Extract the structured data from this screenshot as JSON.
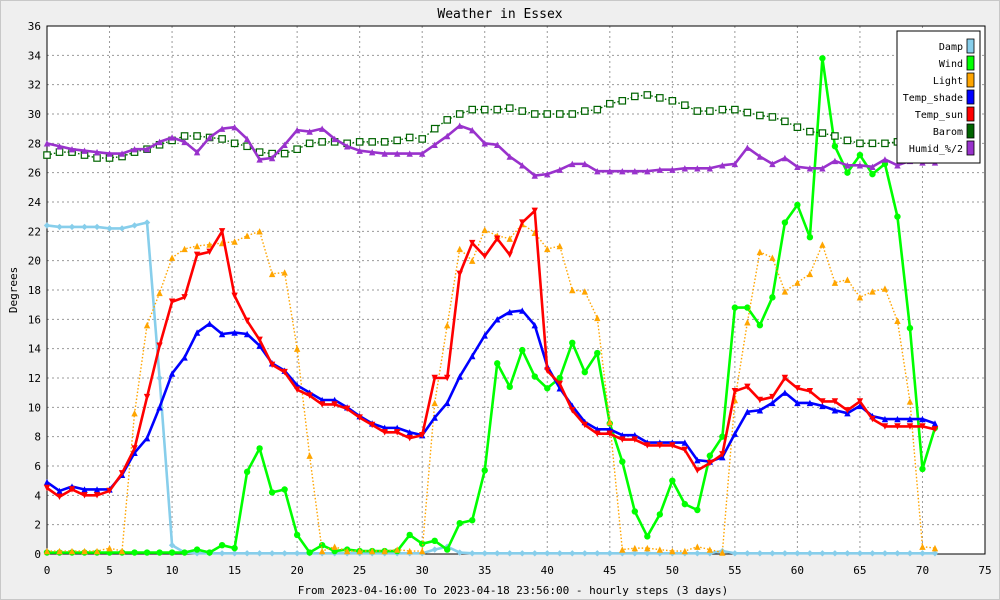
{
  "chart_data": {
    "type": "line",
    "title": "Weather in Essex",
    "xlabel": "From 2023-04-16:00 To 2023-04-18 23:56:00 - hourly steps (3 days)",
    "ylabel": "Degrees",
    "xlim": [
      0,
      75
    ],
    "ylim": [
      0,
      36
    ],
    "x_ticks": [
      "0",
      "5",
      "10",
      "15",
      "20",
      "25",
      "30",
      "35",
      "40",
      "45",
      "50",
      "55",
      "60",
      "65",
      "70",
      "75"
    ],
    "y_ticks": [
      "0",
      "2",
      "4",
      "6",
      "8",
      "10",
      "12",
      "14",
      "16",
      "18",
      "20",
      "22",
      "24",
      "26",
      "28",
      "30",
      "32",
      "34",
      "36"
    ],
    "grid": true,
    "legend_position": "top-right",
    "x": [
      0,
      1,
      2,
      3,
      4,
      5,
      6,
      7,
      8,
      9,
      10,
      11,
      12,
      13,
      14,
      15,
      16,
      17,
      18,
      19,
      20,
      21,
      22,
      23,
      24,
      25,
      26,
      27,
      28,
      29,
      30,
      31,
      32,
      33,
      34,
      35,
      36,
      37,
      38,
      39,
      40,
      41,
      42,
      43,
      44,
      45,
      46,
      47,
      48,
      49,
      50,
      51,
      52,
      53,
      54,
      55,
      56,
      57,
      58,
      59,
      60,
      61,
      62,
      63,
      64,
      65,
      66,
      67,
      68,
      69,
      70,
      71
    ],
    "series": [
      {
        "name": "Damp",
        "color": "#87ceeb",
        "style": "solid",
        "marker": "diamond",
        "values": [
          22.4,
          22.3,
          22.3,
          22.3,
          22.3,
          22.2,
          22.2,
          22.4,
          22.6,
          12.0,
          0.6,
          0.1,
          0.05,
          0.05,
          0.05,
          0.05,
          0.05,
          0.05,
          0.05,
          0.05,
          0.05,
          0.05,
          0.05,
          0.05,
          0.05,
          0.05,
          0.05,
          0.05,
          0.05,
          0.05,
          0.05,
          0.3,
          0.5,
          0.1,
          0.05,
          0.05,
          0.05,
          0.05,
          0.05,
          0.05,
          0.05,
          0.05,
          0.05,
          0.05,
          0.05,
          0.05,
          0.05,
          0.05,
          0.05,
          0.05,
          0.05,
          0.05,
          0.05,
          0.05,
          0.2,
          0.05,
          0.05,
          0.05,
          0.05,
          0.05,
          0.05,
          0.05,
          0.05,
          0.05,
          0.05,
          0.05,
          0.05,
          0.05,
          0.05,
          0.05,
          0.05,
          0.05
        ]
      },
      {
        "name": "Wind",
        "color": "#00ff00",
        "style": "solid",
        "marker": "circle",
        "values": [
          0.1,
          0.1,
          0.1,
          0.1,
          0.1,
          0.1,
          0.1,
          0.1,
          0.1,
          0.1,
          0.1,
          0.1,
          0.3,
          0.1,
          0.6,
          0.4,
          5.6,
          7.2,
          4.2,
          4.4,
          1.3,
          0.1,
          0.6,
          0.2,
          0.3,
          0.2,
          0.2,
          0.2,
          0.2,
          1.3,
          0.7,
          0.9,
          0.3,
          2.1,
          2.3,
          5.7,
          13.0,
          11.4,
          13.9,
          12.1,
          11.3,
          12.0,
          14.4,
          12.4,
          13.7,
          8.9,
          6.3,
          2.9,
          1.2,
          2.7,
          5.0,
          3.4,
          3.0,
          6.7,
          8.0,
          16.8,
          16.8,
          15.6,
          17.5,
          22.6,
          23.8,
          21.6,
          33.8,
          27.8,
          26.0,
          27.2,
          25.9,
          26.6,
          23.0,
          15.4,
          5.8,
          8.6
        ]
      },
      {
        "name": "Light",
        "color": "#ffa500",
        "style": "dotted",
        "marker": "triangle",
        "values": [
          0.2,
          0.2,
          0.2,
          0.2,
          0.2,
          0.4,
          0.2,
          9.6,
          15.6,
          17.8,
          20.2,
          20.8,
          21.0,
          21.1,
          21.2,
          21.3,
          21.7,
          22.0,
          19.1,
          19.2,
          14.0,
          6.7,
          0.2,
          0.5,
          0.2,
          0.2,
          0.2,
          0.2,
          0.3,
          0.2,
          0.2,
          10.3,
          15.6,
          20.8,
          20.0,
          22.1,
          21.7,
          21.5,
          22.5,
          21.9,
          20.8,
          21.0,
          18.0,
          17.9,
          16.1,
          9.0,
          0.3,
          0.4,
          0.4,
          0.3,
          0.2,
          0.2,
          0.5,
          0.3,
          0.1,
          10.5,
          15.8,
          20.6,
          20.2,
          17.9,
          18.5,
          19.1,
          21.1,
          18.5,
          18.7,
          17.5,
          17.9,
          18.1,
          15.9,
          10.4,
          0.5,
          0.4
        ]
      },
      {
        "name": "Temp_shade",
        "color": "#0000ff",
        "style": "solid",
        "marker": "triangle",
        "values": [
          4.9,
          4.3,
          4.6,
          4.4,
          4.4,
          4.4,
          5.4,
          6.9,
          7.9,
          10.0,
          12.3,
          13.4,
          15.1,
          15.7,
          15.0,
          15.1,
          15.0,
          14.2,
          13.0,
          12.5,
          11.5,
          11.0,
          10.5,
          10.5,
          10.0,
          9.4,
          8.9,
          8.6,
          8.6,
          8.3,
          8.1,
          9.3,
          10.3,
          12.1,
          13.5,
          14.9,
          16.0,
          16.5,
          16.6,
          15.6,
          12.8,
          11.3,
          10.1,
          9.0,
          8.5,
          8.5,
          8.1,
          8.1,
          7.6,
          7.6,
          7.6,
          7.6,
          6.4,
          6.3,
          6.6,
          8.2,
          9.7,
          9.8,
          10.3,
          11.0,
          10.3,
          10.3,
          10.1,
          9.8,
          9.6,
          10.1,
          9.4,
          9.2,
          9.2,
          9.2,
          9.2,
          8.9
        ]
      },
      {
        "name": "Temp_sun",
        "color": "#ff0000",
        "style": "solid",
        "marker": "triangle-down",
        "values": [
          4.5,
          3.9,
          4.4,
          4.0,
          4.0,
          4.3,
          5.5,
          7.2,
          10.7,
          14.2,
          17.2,
          17.5,
          20.4,
          20.6,
          22.0,
          17.6,
          15.9,
          14.6,
          12.9,
          12.4,
          11.2,
          10.8,
          10.2,
          10.2,
          9.9,
          9.3,
          8.8,
          8.3,
          8.3,
          7.9,
          8.1,
          12.0,
          12.0,
          19.1,
          21.2,
          20.3,
          21.5,
          20.4,
          22.6,
          23.4,
          12.5,
          11.6,
          9.8,
          8.8,
          8.2,
          8.2,
          7.8,
          7.8,
          7.4,
          7.4,
          7.4,
          7.1,
          5.7,
          6.2,
          6.8,
          11.1,
          11.4,
          10.5,
          10.7,
          12.0,
          11.3,
          11.1,
          10.4,
          10.4,
          9.8,
          10.4,
          9.2,
          8.7,
          8.7,
          8.7,
          8.7,
          8.5
        ]
      },
      {
        "name": "Barom",
        "color": "#006400",
        "style": "dotted",
        "marker": "square",
        "values": [
          27.2,
          27.4,
          27.4,
          27.2,
          27.0,
          27.0,
          27.1,
          27.4,
          27.6,
          27.9,
          28.2,
          28.5,
          28.5,
          28.4,
          28.3,
          28.0,
          27.8,
          27.4,
          27.3,
          27.3,
          27.6,
          28.0,
          28.1,
          28.1,
          28.0,
          28.1,
          28.1,
          28.1,
          28.2,
          28.4,
          28.3,
          29.0,
          29.6,
          30.0,
          30.3,
          30.3,
          30.3,
          30.4,
          30.2,
          30.0,
          30.0,
          30.0,
          30.0,
          30.2,
          30.3,
          30.7,
          30.9,
          31.2,
          31.3,
          31.1,
          30.9,
          30.6,
          30.2,
          30.2,
          30.3,
          30.3,
          30.1,
          29.9,
          29.8,
          29.5,
          29.1,
          28.8,
          28.7,
          28.5,
          28.2,
          28.0,
          28.0,
          28.0,
          28.1,
          27.3,
          26.9,
          27.0
        ]
      },
      {
        "name": "Humid_%/2",
        "color": "#9932cc",
        "style": "solid",
        "marker": "triangle",
        "values": [
          28.0,
          27.8,
          27.6,
          27.5,
          27.4,
          27.3,
          27.3,
          27.6,
          27.6,
          28.1,
          28.4,
          28.1,
          27.4,
          28.4,
          29.0,
          29.1,
          28.3,
          26.9,
          27.0,
          27.9,
          28.9,
          28.8,
          29.0,
          28.3,
          27.8,
          27.5,
          27.4,
          27.3,
          27.3,
          27.3,
          27.3,
          27.9,
          28.5,
          29.2,
          28.9,
          28.0,
          27.9,
          27.1,
          26.5,
          25.8,
          25.9,
          26.2,
          26.6,
          26.6,
          26.1,
          26.1,
          26.1,
          26.1,
          26.1,
          26.2,
          26.2,
          26.3,
          26.3,
          26.3,
          26.5,
          26.6,
          27.7,
          27.1,
          26.6,
          27.0,
          26.4,
          26.3,
          26.3,
          26.8,
          26.5,
          26.5,
          26.4,
          26.9,
          26.5,
          26.8,
          26.7,
          26.7
        ]
      }
    ]
  }
}
